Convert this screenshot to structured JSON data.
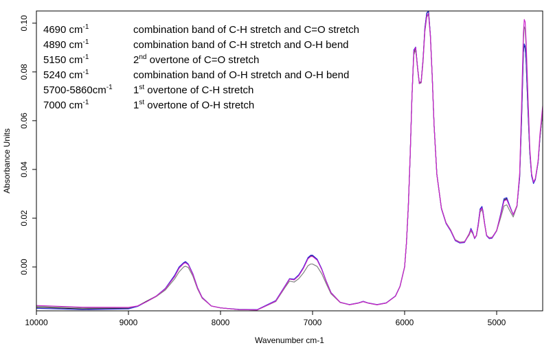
{
  "chart_data": {
    "type": "line",
    "title": "",
    "xlabel": "Wavenumber cm-1",
    "ylabel": "Absorbance Units",
    "xlim": [
      10000,
      4500
    ],
    "x_reversed": true,
    "ylim": [
      -0.018,
      0.105
    ],
    "x_ticks": [
      10000,
      9000,
      8000,
      7000,
      6000,
      5000
    ],
    "y_ticks": [
      0.0,
      0.02,
      0.04,
      0.06,
      0.08,
      0.1
    ],
    "y_tick_labels": [
      "0.00",
      "0.02",
      "0.04",
      "0.06",
      "0.08",
      "0.10"
    ],
    "grid": false,
    "legend": "none",
    "annotations": [
      {
        "wavenumber": "4690",
        "unit": "cm",
        "unit_sup": "-1",
        "desc_pre": "combination band of C-H stretch and C=O stretch",
        "desc_sup": "",
        "desc_post": ""
      },
      {
        "wavenumber": "4890",
        "unit": "cm",
        "unit_sup": "-1",
        "desc_pre": "combination band of C-H stretch and O-H bend",
        "desc_sup": "",
        "desc_post": ""
      },
      {
        "wavenumber": "5150",
        "unit": "cm",
        "unit_sup": "-1",
        "desc_pre": "2",
        "desc_sup": "nd",
        "desc_post": " overtone of C=O stretch"
      },
      {
        "wavenumber": "5240",
        "unit": "cm",
        "unit_sup": "-1",
        "desc_pre": "combination band of O-H stretch and O-H bend",
        "desc_sup": "",
        "desc_post": ""
      },
      {
        "wavenumber": "5700-5860",
        "unit": "cm",
        "unit_sup": "-1",
        "desc_pre": "1",
        "desc_sup": "st",
        "desc_post": " overtone of C-H stretch"
      },
      {
        "wavenumber": "7000",
        "unit": "cm",
        "unit_sup": "-1",
        "desc_pre": "1",
        "desc_sup": "st",
        "desc_post": " overtone of O-H stretch"
      }
    ],
    "x": [
      10000,
      9500,
      9000,
      8900,
      8800,
      8700,
      8600,
      8500,
      8450,
      8400,
      8380,
      8350,
      8300,
      8250,
      8200,
      8100,
      8000,
      7800,
      7600,
      7400,
      7300,
      7250,
      7200,
      7150,
      7100,
      7050,
      7020,
      7000,
      6950,
      6900,
      6850,
      6800,
      6700,
      6600,
      6500,
      6450,
      6400,
      6300,
      6200,
      6100,
      6050,
      6000,
      5980,
      5960,
      5940,
      5920,
      5900,
      5880,
      5860,
      5840,
      5820,
      5800,
      5780,
      5760,
      5740,
      5720,
      5700,
      5680,
      5650,
      5600,
      5550,
      5500,
      5450,
      5400,
      5350,
      5300,
      5280,
      5260,
      5240,
      5220,
      5200,
      5180,
      5160,
      5150,
      5130,
      5110,
      5080,
      5050,
      5000,
      4960,
      4920,
      4890,
      4860,
      4820,
      4780,
      4750,
      4730,
      4710,
      4700,
      4690,
      4680,
      4660,
      4640,
      4620,
      4600,
      4580,
      4550,
      4530,
      4500
    ],
    "series": [
      {
        "color": "#1a1a1a",
        "values": [
          -0.0165,
          -0.0172,
          -0.017,
          -0.016,
          -0.014,
          -0.012,
          -0.009,
          -0.004,
          -0.0005,
          0.0015,
          0.0018,
          0.001,
          -0.003,
          -0.0085,
          -0.0125,
          -0.016,
          -0.0168,
          -0.0175,
          -0.0176,
          -0.014,
          -0.008,
          -0.005,
          -0.0052,
          -0.0035,
          -0.0005,
          0.0035,
          0.0045,
          0.0045,
          0.003,
          -0.001,
          -0.006,
          -0.0105,
          -0.0145,
          -0.0155,
          -0.0148,
          -0.0142,
          -0.0148,
          -0.0155,
          -0.0148,
          -0.012,
          -0.008,
          0.0,
          0.01,
          0.025,
          0.045,
          0.07,
          0.088,
          0.09,
          0.082,
          0.0755,
          0.076,
          0.085,
          0.098,
          0.104,
          0.105,
          0.095,
          0.078,
          0.058,
          0.038,
          0.024,
          0.018,
          0.015,
          0.011,
          0.01,
          0.0102,
          0.0135,
          0.0155,
          0.014,
          0.0118,
          0.013,
          0.0175,
          0.0235,
          0.0245,
          0.023,
          0.0175,
          0.013,
          0.0118,
          0.012,
          0.015,
          0.021,
          0.0275,
          0.028,
          0.025,
          0.0215,
          0.025,
          0.037,
          0.06,
          0.088,
          0.091,
          0.09,
          0.084,
          0.064,
          0.047,
          0.0375,
          0.0345,
          0.036,
          0.043,
          0.053,
          0.064
        ]
      },
      {
        "color": "#2b2bd6",
        "values": [
          -0.017,
          -0.0175,
          -0.0172,
          -0.0162,
          -0.0142,
          -0.012,
          -0.0088,
          -0.0035,
          0.0,
          0.0018,
          0.0022,
          0.0012,
          -0.0028,
          -0.0085,
          -0.0125,
          -0.016,
          -0.0168,
          -0.0174,
          -0.0175,
          -0.0138,
          -0.0078,
          -0.0048,
          -0.005,
          -0.0032,
          -0.0002,
          0.0038,
          0.0048,
          0.0048,
          0.0032,
          -0.0008,
          -0.006,
          -0.0105,
          -0.0145,
          -0.0154,
          -0.0147,
          -0.0141,
          -0.0147,
          -0.0154,
          -0.0147,
          -0.0119,
          -0.0079,
          0.0,
          0.0098,
          0.0248,
          0.0448,
          0.0698,
          0.089,
          0.0902,
          0.0818,
          0.0752,
          0.0758,
          0.0848,
          0.0978,
          0.1042,
          0.1052,
          0.0952,
          0.0782,
          0.0582,
          0.0382,
          0.0238,
          0.0178,
          0.0148,
          0.0108,
          0.0098,
          0.01,
          0.0133,
          0.0158,
          0.0142,
          0.0116,
          0.0128,
          0.0178,
          0.0238,
          0.0248,
          0.0232,
          0.0176,
          0.0128,
          0.0116,
          0.0118,
          0.0148,
          0.0212,
          0.028,
          0.0284,
          0.0252,
          0.0214,
          0.0248,
          0.0368,
          0.0598,
          0.088,
          0.0915,
          0.0905,
          0.0842,
          0.0642,
          0.0468,
          0.0372,
          0.0342,
          0.0358,
          0.0428,
          0.0528,
          0.064
        ]
      },
      {
        "color": "#808080",
        "values": [
          -0.016,
          -0.0168,
          -0.0168,
          -0.016,
          -0.0142,
          -0.0122,
          -0.0095,
          -0.005,
          -0.002,
          0.0,
          0.0003,
          -0.0002,
          -0.0038,
          -0.009,
          -0.0128,
          -0.016,
          -0.0168,
          -0.0175,
          -0.0176,
          -0.0142,
          -0.0085,
          -0.0058,
          -0.0062,
          -0.0048,
          -0.0025,
          0.0005,
          0.0012,
          0.0012,
          0.0002,
          -0.0028,
          -0.007,
          -0.011,
          -0.0146,
          -0.0155,
          -0.0148,
          -0.0142,
          -0.0148,
          -0.0155,
          -0.0148,
          -0.012,
          -0.008,
          0.0,
          0.01,
          0.025,
          0.045,
          0.07,
          0.087,
          0.089,
          0.0815,
          0.0752,
          0.0755,
          0.084,
          0.0965,
          0.1025,
          0.1035,
          0.0945,
          0.0778,
          0.058,
          0.038,
          0.0242,
          0.0182,
          0.0152,
          0.0112,
          0.0102,
          0.0104,
          0.013,
          0.0148,
          0.0136,
          0.0118,
          0.0128,
          0.0168,
          0.0225,
          0.0236,
          0.0222,
          0.0172,
          0.013,
          0.012,
          0.0122,
          0.0148,
          0.0198,
          0.025,
          0.0255,
          0.0232,
          0.0205,
          0.0248,
          0.038,
          0.064,
          0.093,
          0.0985,
          0.0975,
          0.09,
          0.068,
          0.048,
          0.038,
          0.0348,
          0.0362,
          0.0432,
          0.0532,
          0.0635
        ]
      },
      {
        "color": "#cc22cc",
        "values": [
          -0.0158,
          -0.0165,
          -0.0166,
          -0.016,
          -0.0142,
          -0.012,
          -0.009,
          -0.004,
          -0.0005,
          0.0014,
          0.0017,
          0.0009,
          -0.003,
          -0.0086,
          -0.0126,
          -0.016,
          -0.0168,
          -0.0175,
          -0.0176,
          -0.014,
          -0.008,
          -0.005,
          -0.0053,
          -0.0036,
          -0.0006,
          0.0033,
          0.0043,
          0.0043,
          0.0028,
          -0.0011,
          -0.0061,
          -0.0106,
          -0.0145,
          -0.0155,
          -0.0148,
          -0.0142,
          -0.0148,
          -0.0155,
          -0.0148,
          -0.012,
          -0.008,
          0.0,
          0.01,
          0.025,
          0.045,
          0.07,
          0.0885,
          0.09,
          0.0818,
          0.0753,
          0.0758,
          0.0845,
          0.097,
          0.103,
          0.104,
          0.0948,
          0.078,
          0.058,
          0.038,
          0.024,
          0.018,
          0.015,
          0.011,
          0.01,
          0.0102,
          0.0134,
          0.0153,
          0.0139,
          0.0118,
          0.013,
          0.0173,
          0.0232,
          0.0242,
          0.0228,
          0.0174,
          0.013,
          0.0118,
          0.012,
          0.015,
          0.0208,
          0.027,
          0.0276,
          0.0248,
          0.0214,
          0.0252,
          0.0385,
          0.066,
          0.096,
          0.1015,
          0.1005,
          0.0925,
          0.07,
          0.049,
          0.0382,
          0.0348,
          0.0362,
          0.0435,
          0.0545,
          0.066
        ]
      }
    ]
  }
}
